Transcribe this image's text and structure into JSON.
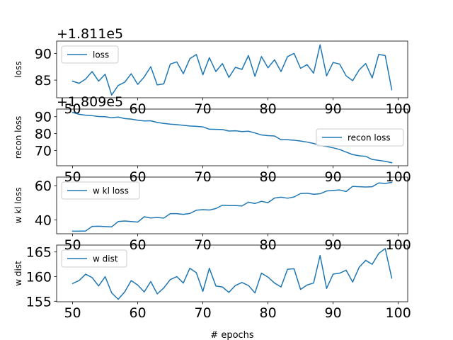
{
  "figure": {
    "xlabel": "# epochs"
  },
  "chart_data": [
    {
      "type": "line",
      "offset_text": "+1.811e5",
      "ylabel": "loss",
      "legend": "upper left",
      "xlim": [
        47.55,
        101.45
      ],
      "ylim": [
        81.7,
        92.3
      ],
      "xticks": [
        50,
        60,
        70,
        80,
        90,
        100
      ],
      "yticks": [
        85,
        90
      ],
      "tick_labels_x": [
        "50",
        "60",
        "70",
        "80",
        "90",
        "100"
      ],
      "tick_labels_y": [
        "85",
        "90"
      ],
      "series": [
        {
          "name": "loss",
          "color": "#1f77b4",
          "x": [
            50,
            51,
            52,
            53,
            54,
            55,
            56,
            57,
            58,
            59,
            60,
            61,
            62,
            63,
            64,
            65,
            66,
            67,
            68,
            69,
            70,
            71,
            72,
            73,
            74,
            75,
            76,
            77,
            78,
            79,
            80,
            81,
            82,
            83,
            84,
            85,
            86,
            87,
            88,
            89,
            90,
            91,
            92,
            93,
            94,
            95,
            96,
            97,
            98,
            99
          ],
          "y": [
            84.8,
            84.4,
            85.2,
            86.6,
            84.8,
            86.1,
            82.2,
            84.0,
            84.6,
            86.2,
            84.2,
            85.6,
            87.5,
            84.1,
            84.3,
            88.0,
            88.4,
            86.2,
            89.0,
            89.8,
            86.0,
            89.2,
            86.6,
            88.1,
            85.5,
            87.4,
            87.0,
            89.6,
            85.7,
            89.4,
            87.3,
            88.8,
            86.6,
            89.4,
            90.0,
            87.2,
            87.9,
            86.3,
            91.6,
            85.8,
            88.3,
            88.0,
            85.8,
            84.9,
            86.9,
            88.1,
            85.4,
            89.8,
            89.6,
            83.2
          ]
        }
      ]
    },
    {
      "type": "line",
      "offset_text": "+1.809e5",
      "ylabel": "recon loss",
      "legend": "center right",
      "xlim": [
        47.55,
        101.45
      ],
      "ylim": [
        61.0,
        94.5
      ],
      "xticks": [
        50,
        60,
        70,
        80,
        90,
        100
      ],
      "yticks": [
        70,
        80,
        90
      ],
      "tick_labels_x": [
        "50",
        "60",
        "70",
        "80",
        "90",
        "100"
      ],
      "tick_labels_y": [
        "70",
        "80",
        "90"
      ],
      "series": [
        {
          "name": "recon loss",
          "color": "#1f77b4",
          "x": [
            50,
            51,
            52,
            53,
            54,
            55,
            56,
            57,
            58,
            59,
            60,
            61,
            62,
            63,
            64,
            65,
            66,
            67,
            68,
            69,
            70,
            71,
            72,
            73,
            74,
            75,
            76,
            77,
            78,
            79,
            80,
            81,
            82,
            83,
            84,
            85,
            86,
            87,
            88,
            89,
            90,
            91,
            92,
            93,
            94,
            95,
            96,
            97,
            98,
            99
          ],
          "y": [
            92.5,
            91.4,
            90.9,
            90.6,
            90.1,
            90.0,
            89.4,
            89.8,
            88.9,
            88.6,
            87.9,
            87.5,
            87.6,
            86.6,
            86.0,
            85.6,
            85.3,
            84.9,
            84.5,
            84.3,
            84.0,
            82.6,
            82.5,
            82.4,
            81.5,
            81.7,
            81.2,
            81.4,
            80.4,
            79.2,
            78.8,
            78.6,
            76.4,
            76.4,
            76.1,
            75.6,
            75.0,
            74.2,
            73.0,
            72.4,
            71.6,
            70.6,
            69.1,
            67.6,
            66.9,
            66.6,
            64.7,
            64.2,
            63.6,
            62.8
          ]
        }
      ]
    },
    {
      "type": "line",
      "offset_text": "",
      "ylabel": "w kl loss",
      "legend": "upper left",
      "xlim": [
        47.55,
        101.45
      ],
      "ylim": [
        32.0,
        65.0
      ],
      "xticks": [
        50,
        60,
        70,
        80,
        90,
        100
      ],
      "yticks": [
        40,
        60
      ],
      "tick_labels_x": [
        "50",
        "60",
        "70",
        "80",
        "90",
        "100"
      ],
      "tick_labels_y": [
        "40",
        "60"
      ],
      "series": [
        {
          "name": "w kl loss",
          "color": "#1f77b4",
          "x": [
            50,
            51,
            52,
            53,
            54,
            55,
            56,
            57,
            58,
            59,
            60,
            61,
            62,
            63,
            64,
            65,
            66,
            67,
            68,
            69,
            70,
            71,
            72,
            73,
            74,
            75,
            76,
            77,
            78,
            79,
            80,
            81,
            82,
            83,
            84,
            85,
            86,
            87,
            88,
            89,
            90,
            91,
            92,
            93,
            94,
            95,
            96,
            97,
            98,
            99
          ],
          "y": [
            33.5,
            33.5,
            33.6,
            36.3,
            36.4,
            36.2,
            36.0,
            39.1,
            39.4,
            39.1,
            38.8,
            41.9,
            41.2,
            41.5,
            41.1,
            43.7,
            43.7,
            43.3,
            43.8,
            45.7,
            46.0,
            45.8,
            46.7,
            48.6,
            48.4,
            48.4,
            48.2,
            50.4,
            49.6,
            50.9,
            50.1,
            52.8,
            53.3,
            52.7,
            53.4,
            55.4,
            55.6,
            55.0,
            55.3,
            56.9,
            57.2,
            57.5,
            56.6,
            59.6,
            59.4,
            59.2,
            59.4,
            61.6,
            61.3,
            61.9
          ]
        }
      ]
    },
    {
      "type": "line",
      "offset_text": "",
      "ylabel": "w dist",
      "legend": "upper left",
      "xlim": [
        47.55,
        101.45
      ],
      "ylim": [
        154.9,
        166.4
      ],
      "xticks": [
        50,
        60,
        70,
        80,
        90,
        100
      ],
      "yticks": [
        155,
        160,
        165
      ],
      "tick_labels_x": [
        "50",
        "60",
        "70",
        "80",
        "90",
        "100"
      ],
      "tick_labels_y": [
        "155",
        "160",
        "165"
      ],
      "series": [
        {
          "name": "w dist",
          "color": "#1f77b4",
          "x": [
            50,
            51,
            52,
            53,
            54,
            55,
            56,
            57,
            58,
            59,
            60,
            61,
            62,
            63,
            64,
            65,
            66,
            67,
            68,
            69,
            70,
            71,
            72,
            73,
            74,
            75,
            76,
            77,
            78,
            79,
            80,
            81,
            82,
            83,
            84,
            85,
            86,
            87,
            88,
            89,
            90,
            91,
            92,
            93,
            94,
            95,
            96,
            97,
            98,
            99
          ],
          "y": [
            158.6,
            159.2,
            160.5,
            159.8,
            158.1,
            160.0,
            156.7,
            155.4,
            156.9,
            159.2,
            158.3,
            156.9,
            159.0,
            156.5,
            157.7,
            159.4,
            160.0,
            158.7,
            161.7,
            160.8,
            157.0,
            161.7,
            158.1,
            157.9,
            156.8,
            158.2,
            158.8,
            158.2,
            156.7,
            160.7,
            159.9,
            158.7,
            157.9,
            161.5,
            161.6,
            157.4,
            158.3,
            158.7,
            164.3,
            157.6,
            160.5,
            160.7,
            161.3,
            158.9,
            161.9,
            163.3,
            162.5,
            164.7,
            165.7,
            159.7
          ]
        }
      ]
    }
  ]
}
